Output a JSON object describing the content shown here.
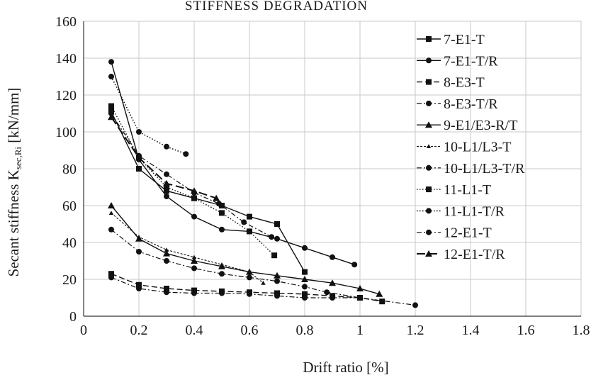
{
  "chart_data": {
    "type": "line",
    "title": "STIFFNESS DEGRADATION",
    "xlabel": "Drift ratio [%]",
    "ylabel_main": "Secant stiffness K",
    "ylabel_sub": "sec,Ri",
    "ylabel_unit": " [kN/mm]",
    "xlim": [
      0,
      1.8
    ],
    "ylim": [
      0,
      160
    ],
    "xticks": [
      0,
      0.2,
      0.4,
      0.6,
      0.8,
      1,
      1.2,
      1.4,
      1.6,
      1.8
    ],
    "xtick_labels": [
      "0",
      "0.2",
      "0.4",
      "0.6",
      "0.8",
      "1",
      "1.2",
      "1.4",
      "1.6",
      "1.8"
    ],
    "yticks": [
      0,
      20,
      40,
      60,
      80,
      100,
      120,
      140,
      160
    ],
    "ytick_labels": [
      "0",
      "20",
      "40",
      "60",
      "80",
      "100",
      "120",
      "140",
      "160"
    ],
    "grid": true,
    "legend_position": "right",
    "series": [
      {
        "name": "7-E1-T",
        "marker": "square",
        "dash": "solid",
        "width": 1.4,
        "x": [
          0.1,
          0.2,
          0.3,
          0.4,
          0.5,
          0.6,
          0.7,
          0.8
        ],
        "y": [
          111,
          80,
          68,
          64,
          60,
          54,
          50,
          24
        ]
      },
      {
        "name": "7-E1-T/R",
        "marker": "circle",
        "dash": "solid",
        "width": 1.4,
        "x": [
          0.1,
          0.2,
          0.3,
          0.4,
          0.5,
          0.6,
          0.7,
          0.8,
          0.9,
          0.98
        ],
        "y": [
          138,
          85,
          65,
          54,
          47,
          46,
          42,
          37,
          32,
          28
        ]
      },
      {
        "name": "8-E3-T",
        "marker": "square",
        "dash": "long",
        "width": 1.4,
        "x": [
          0.1,
          0.2,
          0.3,
          0.4,
          0.5,
          0.6,
          0.7,
          0.8,
          0.9,
          1.0,
          1.08
        ],
        "y": [
          23,
          17,
          15,
          14,
          13.5,
          13,
          12.5,
          12,
          11,
          10,
          8
        ]
      },
      {
        "name": "8-E3-T/R",
        "marker": "circle",
        "dash": "dashdot",
        "width": 1.2,
        "x": [
          0.1,
          0.2,
          0.3,
          0.4,
          0.5,
          0.6,
          0.7,
          0.8,
          0.9,
          1.0
        ],
        "y": [
          21,
          15,
          13,
          12.5,
          12.5,
          12,
          11,
          10,
          10,
          10
        ]
      },
      {
        "name": "9-E1/E3-R/T",
        "marker": "triangle",
        "dash": "solid",
        "width": 1.4,
        "x": [
          0.1,
          0.2,
          0.3,
          0.4,
          0.5,
          0.6,
          0.7,
          0.8,
          0.9,
          1.0,
          1.07
        ],
        "y": [
          60,
          42,
          34,
          30,
          27,
          24,
          22,
          20,
          18,
          15,
          12
        ]
      },
      {
        "name": "10-L1/L3-T",
        "marker": "smalltriangle",
        "dash": "shortdash",
        "width": 1.1,
        "x": [
          0.1,
          0.2,
          0.3,
          0.4,
          0.5,
          0.6,
          0.65
        ],
        "y": [
          56,
          43,
          36,
          32,
          28,
          24,
          18
        ]
      },
      {
        "name": "10-L1/L3-T/R",
        "marker": "circle",
        "dash": "dashdot",
        "width": 1.2,
        "x": [
          0.1,
          0.2,
          0.3,
          0.4,
          0.5,
          0.6,
          0.7,
          0.8,
          0.88,
          1.0,
          1.2
        ],
        "y": [
          47,
          35,
          30,
          26,
          23,
          21,
          19,
          16,
          13,
          10,
          6
        ]
      },
      {
        "name": "11-L1-T",
        "marker": "square",
        "dash": "dotted",
        "width": 1.4,
        "x": [
          0.1,
          0.2,
          0.3,
          0.4,
          0.5,
          0.6,
          0.69
        ],
        "y": [
          114,
          86,
          70,
          64,
          56,
          46,
          33
        ]
      },
      {
        "name": "11-L1-T/R",
        "marker": "circle",
        "dash": "dotted",
        "width": 1.6,
        "x": [
          0.1,
          0.2,
          0.3,
          0.37
        ],
        "y": [
          130,
          100,
          92,
          88
        ]
      },
      {
        "name": "12-E1-T",
        "marker": "circle",
        "dash": "dashdot",
        "width": 1.2,
        "x": [
          0.1,
          0.2,
          0.3,
          0.4,
          0.49,
          0.58,
          0.68
        ],
        "y": [
          110,
          87,
          77,
          67,
          61,
          51,
          43
        ]
      },
      {
        "name": "12-E1-T/R",
        "marker": "triangle",
        "dash": "longdash",
        "width": 2.0,
        "x": [
          0.1,
          0.2,
          0.3,
          0.4,
          0.48
        ],
        "y": [
          108,
          86,
          72,
          68,
          64
        ]
      }
    ]
  }
}
